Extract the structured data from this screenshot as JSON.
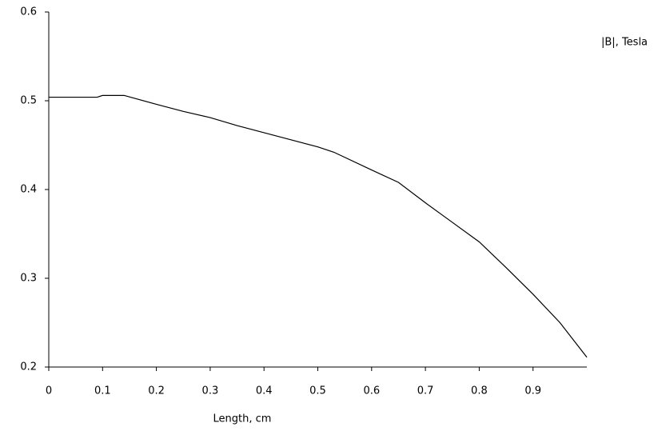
{
  "chart_data": {
    "type": "line",
    "y_label": "|B|, Tesla",
    "x_label": "Length, cm",
    "x": [
      0,
      0.09,
      0.1,
      0.14,
      0.2,
      0.25,
      0.3,
      0.35,
      0.4,
      0.45,
      0.5,
      0.53,
      0.6,
      0.65,
      0.7,
      0.75,
      0.8,
      0.85,
      0.9,
      0.95,
      1.0
    ],
    "series": [
      {
        "color": "#000000",
        "values": [
          0.504,
          0.504,
          0.506,
          0.506,
          0.496,
          0.488,
          0.481,
          0.472,
          0.464,
          0.456,
          0.448,
          0.442,
          0.422,
          0.408,
          0.385,
          0.363,
          0.341,
          0.312,
          0.282,
          0.25,
          0.211
        ]
      }
    ],
    "xlim": [
      0,
      1
    ],
    "xticks": [
      0,
      0.1,
      0.2,
      0.3,
      0.4,
      0.5,
      0.6,
      0.7,
      0.8,
      0.9
    ],
    "ylim": [
      0.2,
      0.6
    ],
    "yticks": [
      0.2,
      0.3,
      0.4,
      0.5,
      0.6
    ],
    "grid": false
  }
}
